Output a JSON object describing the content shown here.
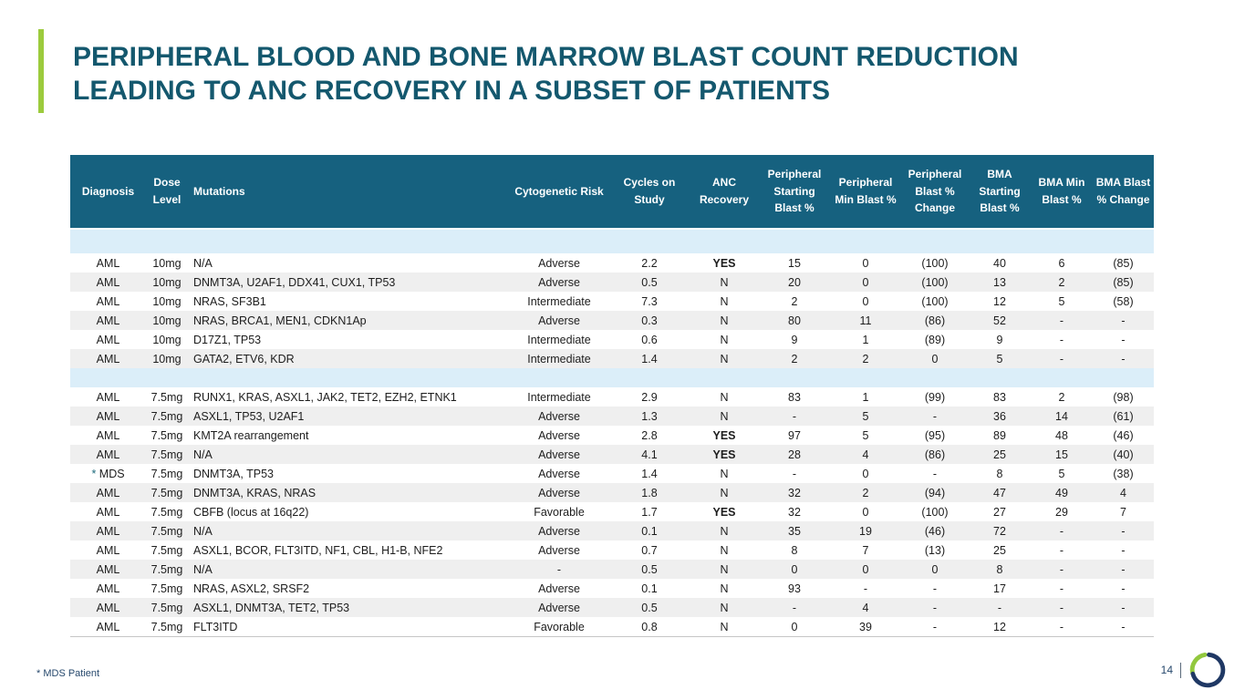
{
  "slide": {
    "title_line1": "PERIPHERAL BLOOD AND BONE MARROW BLAST COUNT REDUCTION",
    "title_line2": "LEADING TO ANC RECOVERY IN A SUBSET OF PATIENTS",
    "footnote": "* MDS Patient",
    "page_number": "14"
  },
  "colors": {
    "title_text": "#14586E",
    "accent_bar_green": "#9CCB3D",
    "table_header_bg": "#16617F",
    "table_header_text": "#FFFFFF",
    "row_alternate": "#EFEFEF",
    "separator_row_blue": "#DBEEF9",
    "footnote_navy": "#27496D",
    "logo_navy": "#1F3864",
    "logo_green": "#92C83E"
  },
  "table": {
    "columns": [
      "Diagnosis",
      "Dose Level",
      "Mutations",
      "Cytogenetic Risk",
      "Cycles on Study",
      "ANC Recovery",
      "Peripheral Starting Blast %",
      "Peripheral Min Blast %",
      "Peripheral Blast % Change",
      "BMA Starting Blast %",
      "BMA Min Blast %",
      "BMA Blast % Change"
    ],
    "rows": [
      {
        "separator": true
      },
      {
        "cells": [
          "AML",
          "10mg",
          "N/A",
          "Adverse",
          "2.2",
          "YES",
          "15",
          "0",
          "(100)",
          "40",
          "6",
          "(85)"
        ]
      },
      {
        "cells": [
          "AML",
          "10mg",
          "DNMT3A, U2AF1, DDX41, CUX1, TP53",
          "Adverse",
          "0.5",
          "N",
          "20",
          "0",
          "(100)",
          "13",
          "2",
          "(85)"
        ]
      },
      {
        "cells": [
          "AML",
          "10mg",
          "NRAS, SF3B1",
          "Intermediate",
          "7.3",
          "N",
          "2",
          "0",
          "(100)",
          "12",
          "5",
          "(58)"
        ]
      },
      {
        "cells": [
          "AML",
          "10mg",
          "NRAS, BRCA1, MEN1, CDKN1Ap",
          "Adverse",
          "0.3",
          "N",
          "80",
          "11",
          "(86)",
          "52",
          "-",
          "-"
        ]
      },
      {
        "cells": [
          "AML",
          "10mg",
          "D17Z1, TP53",
          "Intermediate",
          "0.6",
          "N",
          "9",
          "1",
          "(89)",
          "9",
          "-",
          "-"
        ]
      },
      {
        "cells": [
          "AML",
          "10mg",
          "GATA2, ETV6, KDR",
          "Intermediate",
          "1.4",
          "N",
          "2",
          "2",
          "0",
          "5",
          "-",
          "-"
        ]
      },
      {
        "separator": true
      },
      {
        "cells": [
          "AML",
          "7.5mg",
          "RUNX1, KRAS, ASXL1, JAK2, TET2, EZH2, ETNK1",
          "Intermediate",
          "2.9",
          "N",
          "83",
          "1",
          "(99)",
          "83",
          "2",
          "(98)"
        ]
      },
      {
        "cells": [
          "AML",
          "7.5mg",
          "ASXL1, TP53, U2AF1",
          "Adverse",
          "1.3",
          "N",
          "-",
          "5",
          "-",
          "36",
          "14",
          "(61)"
        ]
      },
      {
        "cells": [
          "AML",
          "7.5mg",
          "KMT2A rearrangement",
          "Adverse",
          "2.8",
          "YES",
          "97",
          "5",
          "(95)",
          "89",
          "48",
          "(46)"
        ]
      },
      {
        "cells": [
          "AML",
          "7.5mg",
          "N/A",
          "Adverse",
          "4.1",
          "YES",
          "28",
          "4",
          "(86)",
          "25",
          "15",
          "(40)"
        ]
      },
      {
        "asterisk": true,
        "cells": [
          "MDS",
          "7.5mg",
          "DNMT3A, TP53",
          "Adverse",
          "1.4",
          "N",
          "-",
          "0",
          "-",
          "8",
          "5",
          "(38)"
        ]
      },
      {
        "cells": [
          "AML",
          "7.5mg",
          "DNMT3A, KRAS, NRAS",
          "Adverse",
          "1.8",
          "N",
          "32",
          "2",
          "(94)",
          "47",
          "49",
          "4"
        ]
      },
      {
        "cells": [
          "AML",
          "7.5mg",
          "CBFB (locus at 16q22)",
          "Favorable",
          "1.7",
          "YES",
          "32",
          "0",
          "(100)",
          "27",
          "29",
          "7"
        ]
      },
      {
        "cells": [
          "AML",
          "7.5mg",
          "N/A",
          "Adverse",
          "0.1",
          "N",
          "35",
          "19",
          "(46)",
          "72",
          "-",
          "-"
        ]
      },
      {
        "cells": [
          "AML",
          "7.5mg",
          "ASXL1, BCOR, FLT3ITD, NF1, CBL, H1-B, NFE2",
          "Adverse",
          "0.7",
          "N",
          "8",
          "7",
          "(13)",
          "25",
          "-",
          "-"
        ]
      },
      {
        "cells": [
          "AML",
          "7.5mg",
          "N/A",
          "-",
          "0.5",
          "N",
          "0",
          "0",
          "0",
          "8",
          "-",
          "-"
        ]
      },
      {
        "cells": [
          "AML",
          "7.5mg",
          "NRAS, ASXL2, SRSF2",
          "Adverse",
          "0.1",
          "N",
          "93",
          "-",
          "-",
          "17",
          "-",
          "-"
        ]
      },
      {
        "cells": [
          "AML",
          "7.5mg",
          "ASXL1, DNMT3A, TET2, TP53",
          "Adverse",
          "0.5",
          "N",
          "-",
          "4",
          "-",
          "-",
          "-",
          "-"
        ]
      },
      {
        "cells": [
          "AML",
          "7.5mg",
          "FLT3ITD",
          "Favorable",
          "0.8",
          "N",
          "0",
          "39",
          "-",
          "12",
          "-",
          "-"
        ]
      }
    ]
  }
}
